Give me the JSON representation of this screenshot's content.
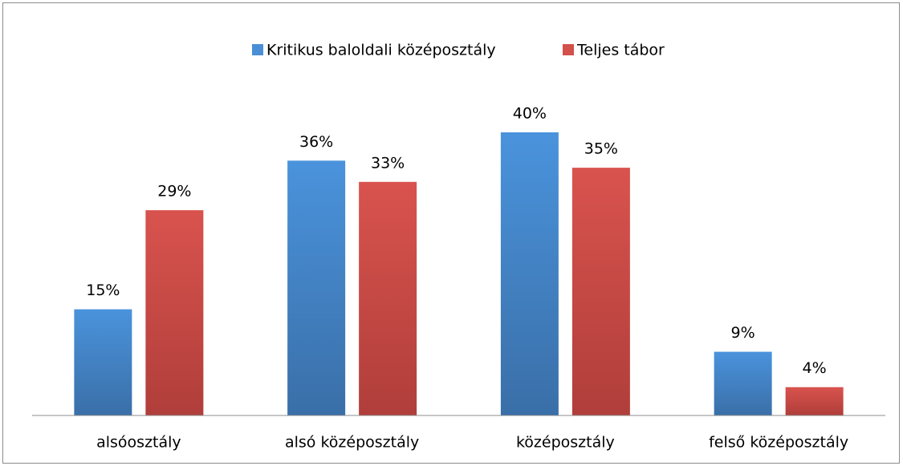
{
  "chart_data": {
    "type": "bar",
    "categories": [
      "alsóosztály",
      "alsó középosztály",
      "középosztály",
      "felső középosztály"
    ],
    "series": [
      {
        "name": "Kritikus baloldali középosztály",
        "color": "#4a8fd6",
        "values": [
          15,
          36,
          40,
          9
        ],
        "value_labels": [
          "15%",
          "36%",
          "40%",
          "9%"
        ]
      },
      {
        "name": "Teljes tábor",
        "color": "#d4504b",
        "values": [
          29,
          33,
          35,
          4
        ],
        "value_labels": [
          "29%",
          "33%",
          "35%",
          "4%"
        ]
      }
    ],
    "legend": "top"
  }
}
